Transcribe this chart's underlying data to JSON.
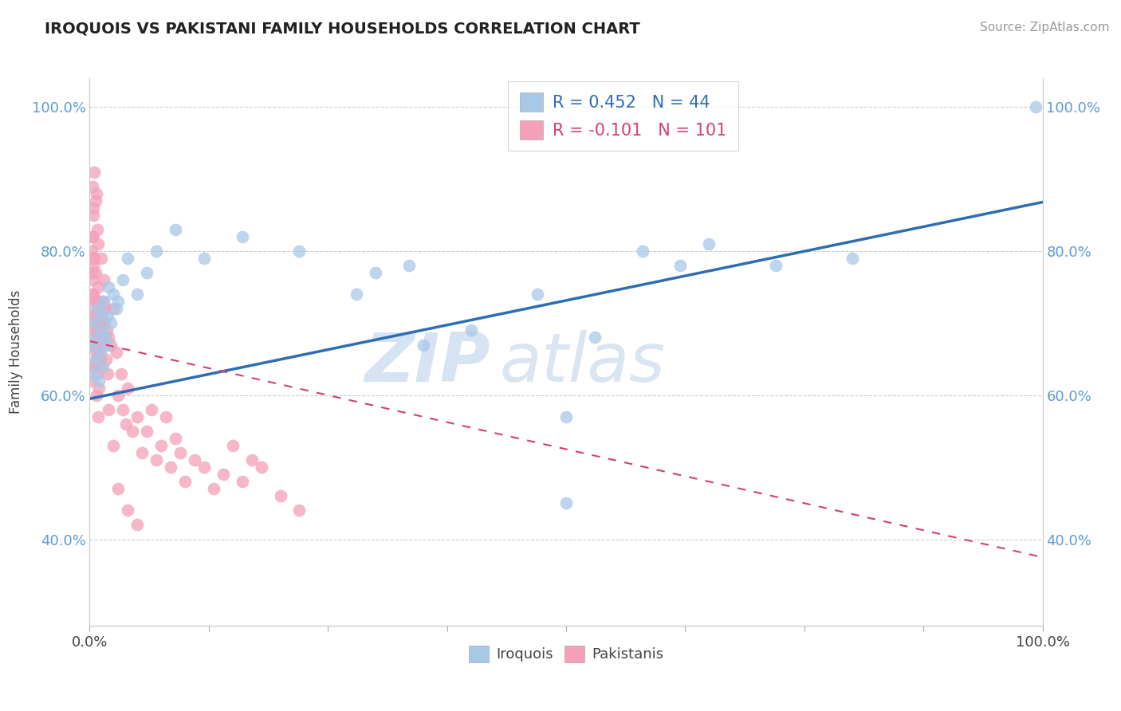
{
  "title": "IROQUOIS VS PAKISTANI FAMILY HOUSEHOLDS CORRELATION CHART",
  "source": "Source: ZipAtlas.com",
  "ylabel": "Family Households",
  "legend_blue_label": "Iroquois",
  "legend_pink_label": "Pakistanis",
  "blue_color": "#a8c8e8",
  "pink_color": "#f4a0b8",
  "blue_line_color": "#2e6db4",
  "pink_line_color": "#d44070",
  "watermark_zip": "ZIP",
  "watermark_atlas": "atlas",
  "blue_line_y0": 0.595,
  "blue_line_y1": 0.868,
  "pink_line_y0": 0.675,
  "pink_line_y1": 0.375,
  "ylim_min": 0.28,
  "ylim_max": 1.04,
  "yticks": [
    0.4,
    0.6,
    0.8,
    1.0
  ],
  "ytick_labels": [
    "40.0%",
    "60.0%",
    "80.0%",
    "100.0%"
  ],
  "xtick_positions": [
    0.0,
    0.125,
    0.25,
    0.375,
    0.5,
    0.625,
    0.75,
    0.875,
    1.0
  ],
  "xtick_labels_show": [
    "0.0%",
    "",
    "",
    "",
    "",
    "",
    "",
    "",
    "100.0%"
  ],
  "blue_x": [
    0.002,
    0.004,
    0.005,
    0.006,
    0.007,
    0.008,
    0.01,
    0.011,
    0.012,
    0.013,
    0.014,
    0.015,
    0.016,
    0.018,
    0.019,
    0.02,
    0.022,
    0.025,
    0.028,
    0.03,
    0.035,
    0.04,
    0.05,
    0.06,
    0.07,
    0.09,
    0.12,
    0.16,
    0.22,
    0.3,
    0.35,
    0.4,
    0.47,
    0.5,
    0.53,
    0.58,
    0.62,
    0.65,
    0.72,
    0.8,
    0.335,
    0.993,
    0.5,
    0.28
  ],
  "blue_y": [
    0.67,
    0.63,
    0.7,
    0.65,
    0.68,
    0.72,
    0.62,
    0.66,
    0.71,
    0.69,
    0.64,
    0.73,
    0.68,
    0.67,
    0.71,
    0.75,
    0.7,
    0.74,
    0.72,
    0.73,
    0.76,
    0.79,
    0.74,
    0.77,
    0.8,
    0.83,
    0.79,
    0.82,
    0.8,
    0.77,
    0.67,
    0.69,
    0.74,
    0.57,
    0.68,
    0.8,
    0.78,
    0.81,
    0.78,
    0.79,
    0.78,
    1.0,
    0.45,
    0.74
  ],
  "pink_x": [
    0.001,
    0.002,
    0.002,
    0.003,
    0.003,
    0.003,
    0.004,
    0.004,
    0.004,
    0.005,
    0.005,
    0.005,
    0.006,
    0.006,
    0.006,
    0.007,
    0.007,
    0.007,
    0.008,
    0.008,
    0.008,
    0.009,
    0.009,
    0.009,
    0.01,
    0.01,
    0.01,
    0.011,
    0.011,
    0.012,
    0.012,
    0.013,
    0.013,
    0.014,
    0.015,
    0.015,
    0.016,
    0.017,
    0.018,
    0.019,
    0.02,
    0.022,
    0.025,
    0.028,
    0.03,
    0.033,
    0.035,
    0.038,
    0.04,
    0.045,
    0.05,
    0.055,
    0.06,
    0.065,
    0.07,
    0.075,
    0.08,
    0.085,
    0.09,
    0.095,
    0.1,
    0.11,
    0.12,
    0.13,
    0.14,
    0.15,
    0.16,
    0.17,
    0.18,
    0.2,
    0.22,
    0.003,
    0.004,
    0.005,
    0.006,
    0.007,
    0.008,
    0.009,
    0.012,
    0.015,
    0.001,
    0.002,
    0.003,
    0.003,
    0.004,
    0.004,
    0.005,
    0.006,
    0.007,
    0.008,
    0.009,
    0.01,
    0.01,
    0.011,
    0.013,
    0.015,
    0.02,
    0.025,
    0.03,
    0.04,
    0.05
  ],
  "pink_y": [
    0.67,
    0.74,
    0.8,
    0.76,
    0.82,
    0.7,
    0.68,
    0.86,
    0.78,
    0.64,
    0.71,
    0.79,
    0.66,
    0.73,
    0.77,
    0.65,
    0.69,
    0.73,
    0.63,
    0.67,
    0.71,
    0.7,
    0.68,
    0.75,
    0.66,
    0.7,
    0.73,
    0.64,
    0.68,
    0.71,
    0.68,
    0.67,
    0.7,
    0.73,
    0.67,
    0.7,
    0.72,
    0.65,
    0.69,
    0.63,
    0.68,
    0.67,
    0.72,
    0.66,
    0.6,
    0.63,
    0.58,
    0.56,
    0.61,
    0.55,
    0.57,
    0.52,
    0.55,
    0.58,
    0.51,
    0.53,
    0.57,
    0.5,
    0.54,
    0.52,
    0.48,
    0.51,
    0.5,
    0.47,
    0.49,
    0.53,
    0.48,
    0.51,
    0.5,
    0.46,
    0.44,
    0.89,
    0.85,
    0.91,
    0.87,
    0.88,
    0.83,
    0.81,
    0.79,
    0.76,
    0.62,
    0.72,
    0.77,
    0.82,
    0.74,
    0.79,
    0.64,
    0.69,
    0.6,
    0.65,
    0.57,
    0.61,
    0.73,
    0.65,
    0.68,
    0.72,
    0.58,
    0.53,
    0.47,
    0.44,
    0.42
  ]
}
